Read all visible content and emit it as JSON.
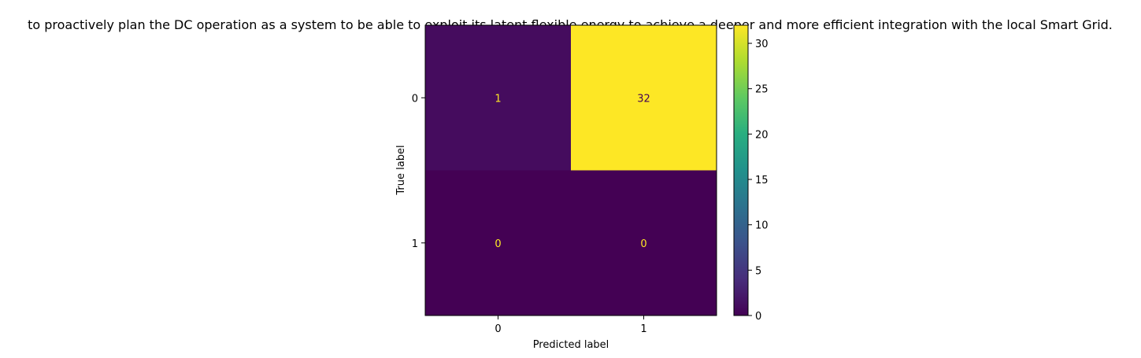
{
  "chart_data": {
    "type": "heatmap",
    "title": "to proactively plan the DC operation as a system to be able to exploit its latent flexible energy to achieve a deeper and more efficient integration with the local Smart Grid.",
    "xlabel": "Predicted label",
    "ylabel": "True label",
    "x_categories": [
      "0",
      "1"
    ],
    "y_categories": [
      "0",
      "1"
    ],
    "matrix": [
      [
        1,
        32
      ],
      [
        0,
        0
      ]
    ],
    "colormap": "viridis",
    "colorbar": {
      "min": 0,
      "max": 32,
      "ticks": [
        0,
        5,
        10,
        15,
        20,
        25,
        30
      ]
    },
    "grid": false
  },
  "colors": {
    "cell_text_low": "#fde725",
    "cell_text_high": "#440154",
    "axis": "#000000"
  }
}
